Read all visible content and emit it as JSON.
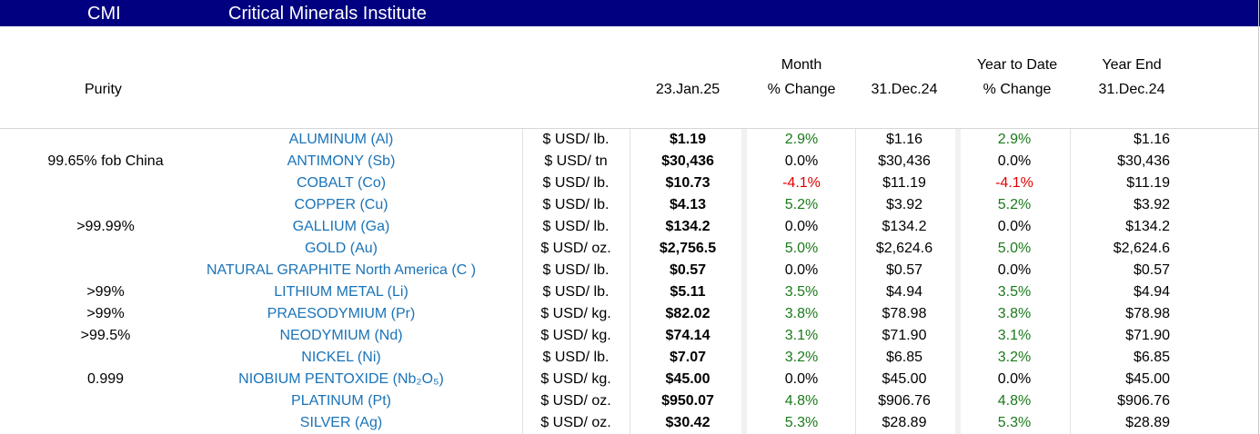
{
  "title_bar": {
    "code": "CMI",
    "name": "Critical Minerals Institute",
    "bg_color": "#000080"
  },
  "headers": {
    "purity": "Purity",
    "current_date": "23.Jan.25",
    "month_line1": "Month",
    "month_line2": "% Change",
    "prev_date": "31.Dec.24",
    "ytd_line1": "Year to Date",
    "ytd_line2": "% Change",
    "ye_line1": "Year End",
    "ye_line2": "31.Dec.24"
  },
  "colors": {
    "mineral_text": "#1a73b8",
    "positive": "#1a7a1a",
    "negative": "#e00000"
  },
  "rows": [
    {
      "purity": "",
      "mineral": "ALUMINUM (Al)",
      "unit": "$ USD/ lb.",
      "price": "$1.19",
      "month_change": "2.9%",
      "month_sign": "pos",
      "prev": "$1.16",
      "ytd_change": "2.9%",
      "ytd_sign": "pos",
      "year_end": "$1.16"
    },
    {
      "purity": "99.65% fob China",
      "mineral": "ANTIMONY (Sb)",
      "unit": "$ USD/ tn",
      "price": "$30,436",
      "month_change": "0.0%",
      "month_sign": "zero",
      "prev": "$30,436",
      "ytd_change": "0.0%",
      "ytd_sign": "zero",
      "year_end": "$30,436"
    },
    {
      "purity": "",
      "mineral": "COBALT (Co)",
      "unit": "$ USD/ lb.",
      "price": "$10.73",
      "month_change": "-4.1%",
      "month_sign": "neg",
      "prev": "$11.19",
      "ytd_change": "-4.1%",
      "ytd_sign": "neg",
      "year_end": "$11.19"
    },
    {
      "purity": "",
      "mineral": "COPPER (Cu)",
      "unit": "$ USD/ lb.",
      "price": "$4.13",
      "month_change": "5.2%",
      "month_sign": "pos",
      "prev": "$3.92",
      "ytd_change": "5.2%",
      "ytd_sign": "pos",
      "year_end": "$3.92"
    },
    {
      "purity": ">99.99%",
      "mineral": "GALLIUM (Ga)",
      "unit": "$ USD/ lb.",
      "price": "$134.2",
      "month_change": "0.0%",
      "month_sign": "zero",
      "prev": "$134.2",
      "ytd_change": "0.0%",
      "ytd_sign": "zero",
      "year_end": "$134.2"
    },
    {
      "purity": "",
      "mineral": "GOLD (Au)",
      "unit": "$ USD/ oz.",
      "price": "$2,756.5",
      "month_change": "5.0%",
      "month_sign": "pos",
      "prev": "$2,624.6",
      "ytd_change": "5.0%",
      "ytd_sign": "pos",
      "year_end": "$2,624.6"
    },
    {
      "purity": "",
      "mineral": "NATURAL GRAPHITE North America (C )",
      "unit": "$ USD/ lb.",
      "price": "$0.57",
      "month_change": "0.0%",
      "month_sign": "zero",
      "prev": "$0.57",
      "ytd_change": "0.0%",
      "ytd_sign": "zero",
      "year_end": "$0.57"
    },
    {
      "purity": ">99%",
      "mineral": "LITHIUM METAL (Li)",
      "unit": "$ USD/ lb.",
      "price": "$5.11",
      "month_change": "3.5%",
      "month_sign": "pos",
      "prev": "$4.94",
      "ytd_change": "3.5%",
      "ytd_sign": "pos",
      "year_end": "$4.94"
    },
    {
      "purity": ">99%",
      "mineral": "PRAESODYMIUM (Pr)",
      "unit": "$ USD/ kg.",
      "price": "$82.02",
      "month_change": "3.8%",
      "month_sign": "pos",
      "prev": "$78.98",
      "ytd_change": "3.8%",
      "ytd_sign": "pos",
      "year_end": "$78.98"
    },
    {
      "purity": ">99.5%",
      "mineral": "NEODYMIUM (Nd)",
      "unit": "$ USD/ kg.",
      "price": "$74.14",
      "month_change": "3.1%",
      "month_sign": "pos",
      "prev": "$71.90",
      "ytd_change": "3.1%",
      "ytd_sign": "pos",
      "year_end": "$71.90"
    },
    {
      "purity": "",
      "mineral": "NICKEL (Ni)",
      "unit": "$ USD/ lb.",
      "price": "$7.07",
      "month_change": "3.2%",
      "month_sign": "pos",
      "prev": "$6.85",
      "ytd_change": "3.2%",
      "ytd_sign": "pos",
      "year_end": "$6.85"
    },
    {
      "purity": "0.999",
      "mineral": "NIOBIUM PENTOXIDE (Nb₂O₅)",
      "unit": "$ USD/ kg.",
      "price": "$45.00",
      "month_change": "0.0%",
      "month_sign": "zero",
      "prev": "$45.00",
      "ytd_change": "0.0%",
      "ytd_sign": "zero",
      "year_end": "$45.00"
    },
    {
      "purity": "",
      "mineral": "PLATINUM (Pt)",
      "unit": "$ USD/ oz.",
      "price": "$950.07",
      "month_change": "4.8%",
      "month_sign": "pos",
      "prev": "$906.76",
      "ytd_change": "4.8%",
      "ytd_sign": "pos",
      "year_end": "$906.76"
    },
    {
      "purity": "",
      "mineral": "SILVER (Ag)",
      "unit": "$ USD/ oz.",
      "price": "$30.42",
      "month_change": "5.3%",
      "month_sign": "pos",
      "prev": "$28.89",
      "ytd_change": "5.3%",
      "ytd_sign": "pos",
      "year_end": "$28.89"
    }
  ]
}
